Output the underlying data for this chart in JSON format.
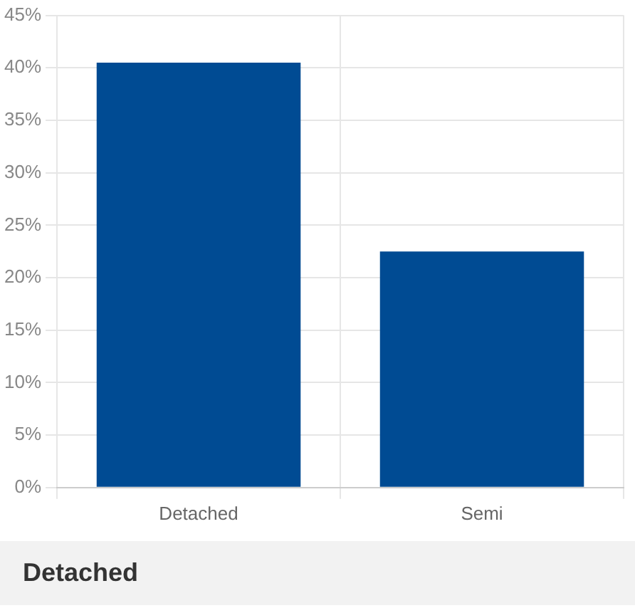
{
  "chart_data": {
    "type": "bar",
    "categories": [
      "Detached",
      "Semi"
    ],
    "values": [
      40.5,
      22.5
    ],
    "color": "#004b93",
    "ylim": [
      0,
      45
    ],
    "yticks": [
      {
        "value": 0,
        "label": "0%"
      },
      {
        "value": 5,
        "label": "5%"
      },
      {
        "value": 10,
        "label": "10%"
      },
      {
        "value": 15,
        "label": "15%"
      },
      {
        "value": 20,
        "label": "20%"
      },
      {
        "value": 25,
        "label": "25%"
      },
      {
        "value": 30,
        "label": "30%"
      },
      {
        "value": 35,
        "label": "35%"
      },
      {
        "value": 40,
        "label": "40%"
      },
      {
        "value": 45,
        "label": "45%"
      }
    ],
    "grid": true,
    "legend": false,
    "annotations": [
      "Detached"
    ]
  }
}
